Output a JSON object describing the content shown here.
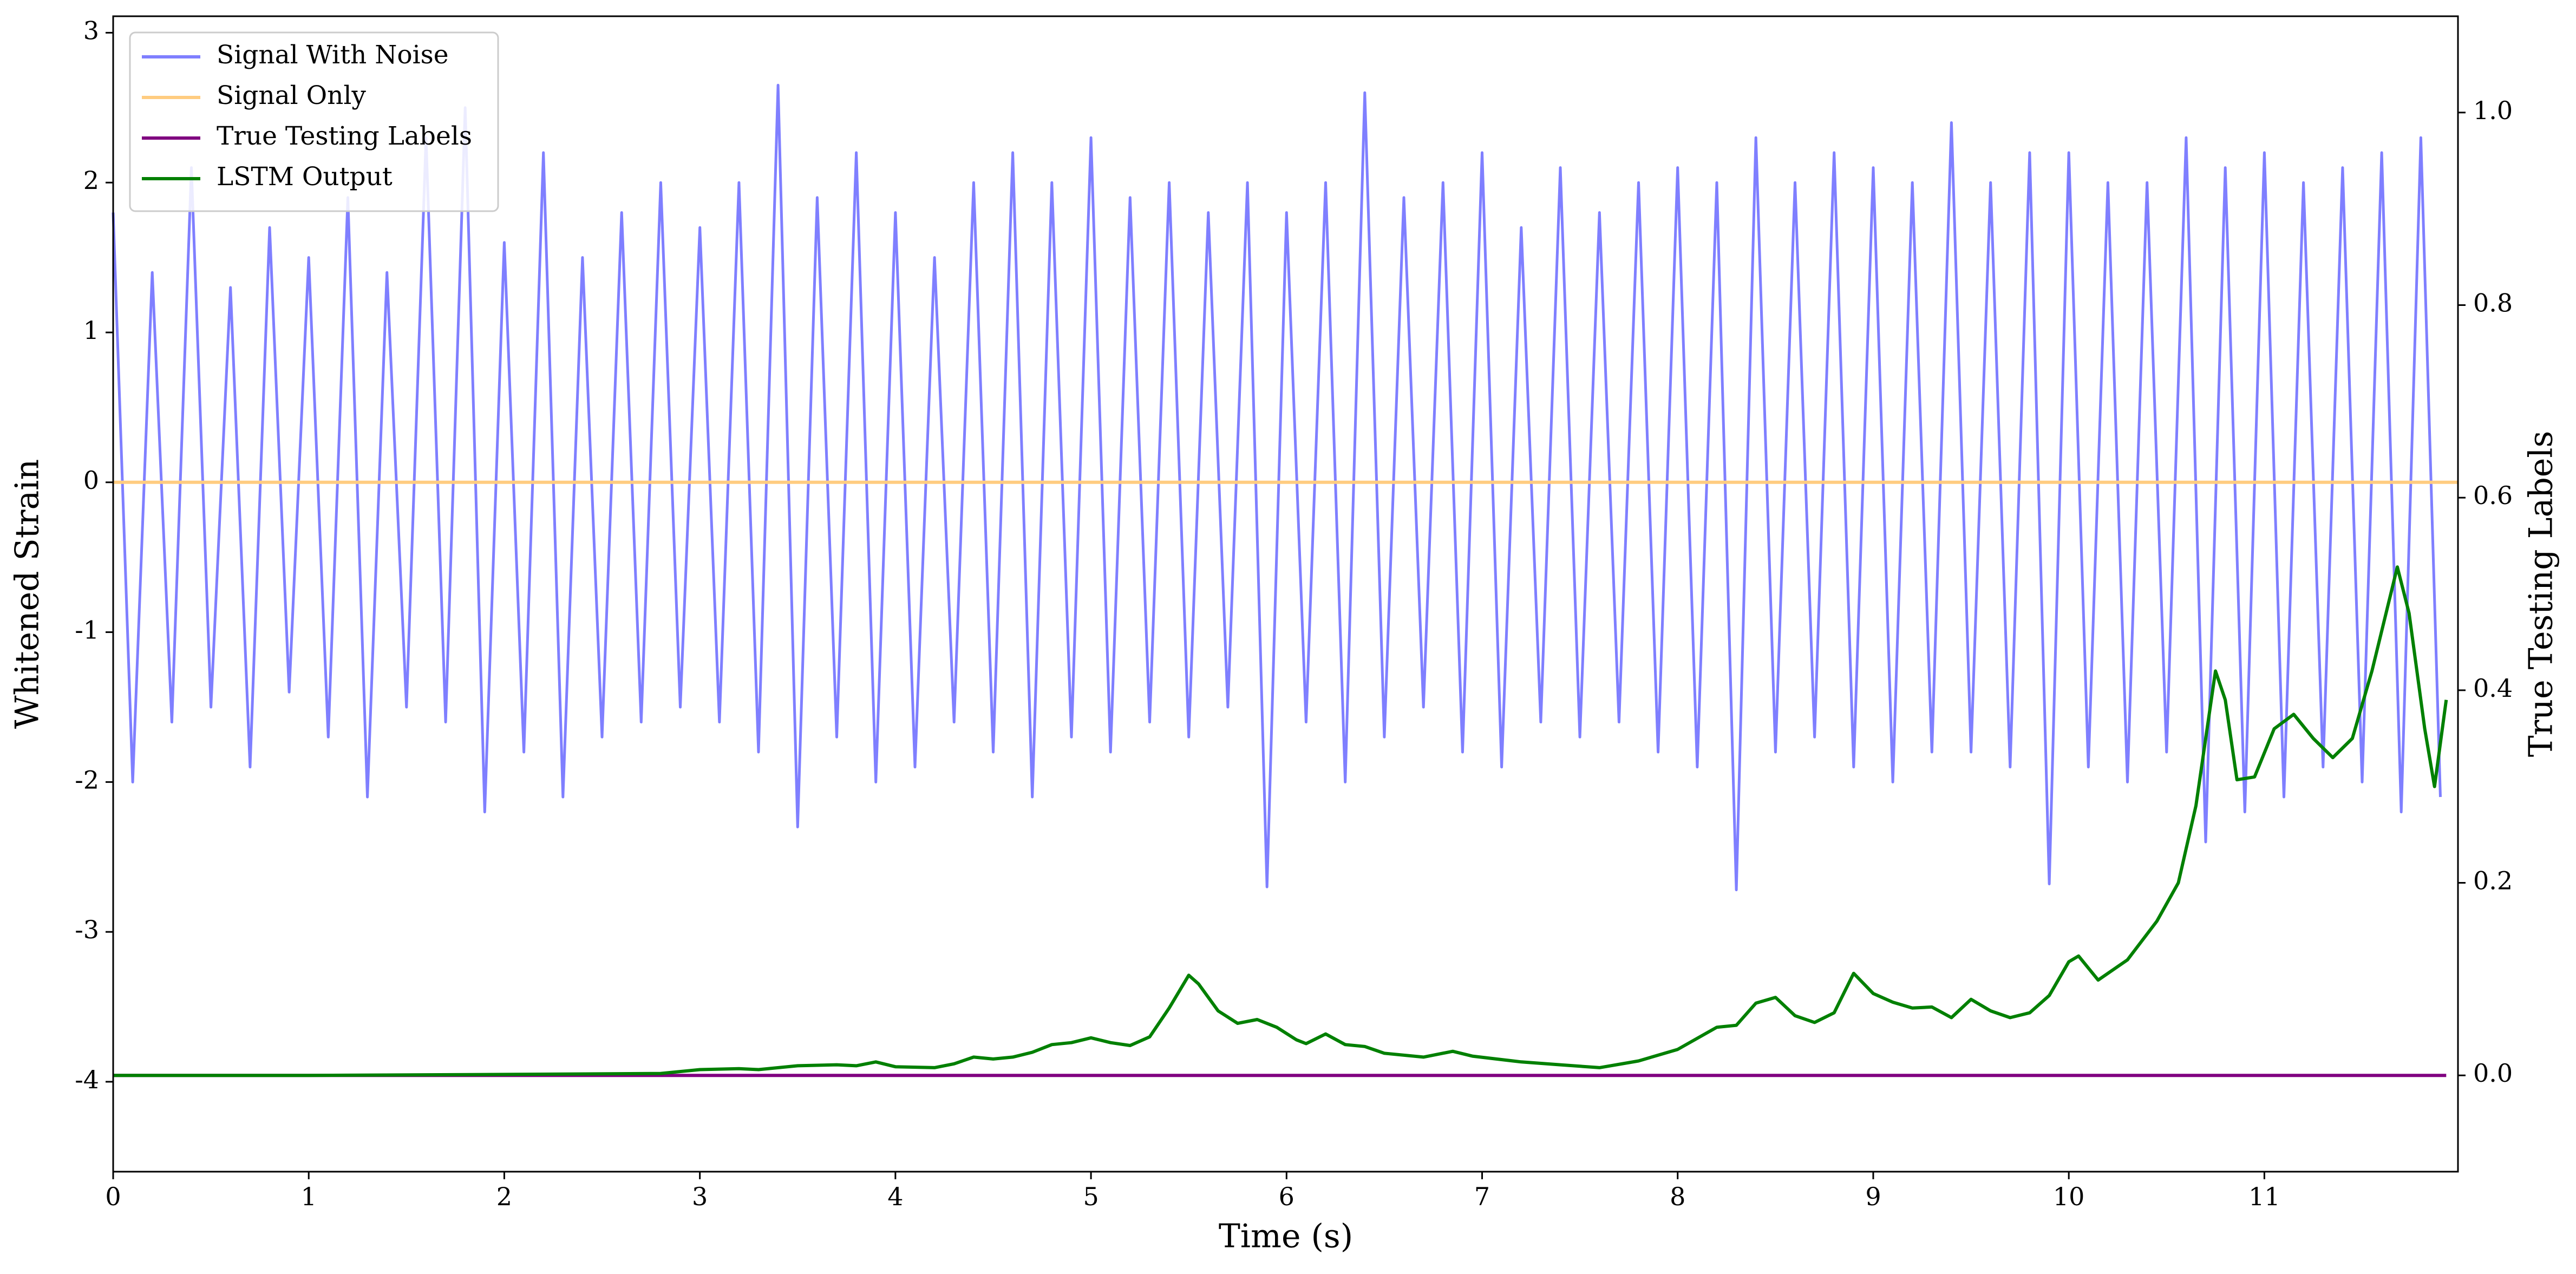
{
  "chart_data": {
    "type": "line",
    "xlabel": "Time (s)",
    "ylabel": "Whitened Strain",
    "y2label": "True Testing Labels",
    "xlim": [
      0,
      11.99
    ],
    "ylim": [
      -4.6,
      3.11
    ],
    "y2lim": [
      -0.1,
      1.1
    ],
    "xticks": [
      0,
      1,
      2,
      3,
      4,
      5,
      6,
      7,
      8,
      9,
      10,
      11
    ],
    "yticks": [
      -4,
      -3,
      -2,
      -1,
      0,
      1,
      2,
      3
    ],
    "y2ticks": [
      {
        "value": 0,
        "label": "0.0"
      },
      0.2,
      0.4,
      0.6,
      0.8,
      {
        "value": 1,
        "label": "1.0"
      }
    ],
    "legend": "upper left",
    "series": [
      {
        "name": "Signal With Noise",
        "color": "#7f7fff",
        "x": [
          0,
          0.1,
          0.2,
          0.3,
          0.4,
          0.5,
          0.6,
          0.7,
          0.8,
          0.9,
          1,
          1.1,
          1.2,
          1.3,
          1.4,
          1.5,
          1.6,
          1.7,
          1.8,
          1.9,
          2,
          2.1,
          2.2,
          2.3,
          2.4,
          2.5,
          2.6,
          2.7,
          2.8,
          2.9,
          3,
          3.1,
          3.2,
          3.3,
          3.4,
          3.5,
          3.6,
          3.7,
          3.8,
          3.9,
          4,
          4.1,
          4.2,
          4.3,
          4.4,
          4.5,
          4.6,
          4.7,
          4.8,
          4.9,
          5,
          5.1,
          5.2,
          5.3,
          5.4,
          5.5,
          5.6,
          5.7,
          5.8,
          5.9,
          6,
          6.1,
          6.2,
          6.3,
          6.4,
          6.5,
          6.6,
          6.7,
          6.8,
          6.9,
          7,
          7.1,
          7.2,
          7.3,
          7.4,
          7.5,
          7.6,
          7.7,
          7.8,
          7.9,
          8,
          8.1,
          8.2,
          8.3,
          8.4,
          8.5,
          8.6,
          8.7,
          8.8,
          8.9,
          9,
          9.1,
          9.2,
          9.3,
          9.4,
          9.5,
          9.6,
          9.7,
          9.8,
          9.9,
          10,
          10.1,
          10.2,
          10.3,
          10.4,
          10.5,
          10.6,
          10.7,
          10.8,
          10.9,
          11,
          11.1,
          11.2,
          11.3,
          11.4,
          11.5,
          11.6,
          11.7,
          11.8,
          11.9
        ],
        "values": [
          1.8,
          -2.0,
          1.4,
          -1.6,
          2.1,
          -1.5,
          1.3,
          -1.9,
          1.7,
          -1.4,
          1.5,
          -1.7,
          1.9,
          -2.1,
          1.4,
          -1.5,
          2.3,
          -1.6,
          2.5,
          -2.2,
          1.6,
          -1.8,
          2.2,
          -2.1,
          1.5,
          -1.7,
          1.8,
          -1.6,
          2.0,
          -1.5,
          1.7,
          -1.6,
          2.0,
          -1.8,
          2.65,
          -2.3,
          1.9,
          -1.7,
          2.2,
          -2.0,
          1.8,
          -1.9,
          1.5,
          -1.6,
          2.0,
          -1.8,
          2.2,
          -2.1,
          2.0,
          -1.7,
          2.3,
          -1.8,
          1.9,
          -1.6,
          2.0,
          -1.7,
          1.8,
          -1.5,
          2.0,
          -2.7,
          1.8,
          -1.6,
          2.0,
          -2.0,
          2.6,
          -1.7,
          1.9,
          -1.5,
          2.0,
          -1.8,
          2.2,
          -1.9,
          1.7,
          -1.6,
          2.1,
          -1.7,
          1.8,
          -1.6,
          2.0,
          -1.8,
          2.1,
          -1.9,
          2.0,
          -2.72,
          2.3,
          -1.8,
          2.0,
          -1.7,
          2.2,
          -1.9,
          2.1,
          -2.0,
          2.0,
          -1.8,
          2.4,
          -1.8,
          2.0,
          -1.9,
          2.2,
          -2.68,
          2.2,
          -1.9,
          2.0,
          -2.0,
          2.0,
          -1.8,
          2.3,
          -2.4,
          2.1,
          -2.2,
          2.2,
          -2.1,
          2.0,
          -1.9,
          2.1,
          -2.0,
          2.2,
          -2.2,
          2.3,
          -2.1
        ]
      },
      {
        "name": "Signal Only",
        "color": "#ffcc80",
        "x": [
          0,
          11.99
        ],
        "values": [
          0,
          0
        ]
      },
      {
        "name": "True Testing Labels",
        "color": "#800080",
        "axis": "y2",
        "x": [
          0,
          11.93
        ],
        "values": [
          0,
          0
        ]
      },
      {
        "name": "LSTM Output",
        "color": "#008000",
        "axis": "y2",
        "x": [
          0,
          1,
          2,
          2.8,
          3,
          3.2,
          3.3,
          3.5,
          3.7,
          3.8,
          3.9,
          4,
          4.2,
          4.3,
          4.4,
          4.5,
          4.6,
          4.7,
          4.8,
          4.9,
          5,
          5.1,
          5.2,
          5.3,
          5.4,
          5.5,
          5.55,
          5.65,
          5.75,
          5.85,
          5.95,
          6.05,
          6.1,
          6.2,
          6.3,
          6.4,
          6.5,
          6.7,
          6.85,
          6.95,
          7.2,
          7.4,
          7.6,
          7.8,
          8,
          8.2,
          8.3,
          8.4,
          8.5,
          8.6,
          8.7,
          8.8,
          8.9,
          9,
          9.1,
          9.2,
          9.3,
          9.4,
          9.5,
          9.6,
          9.7,
          9.8,
          9.9,
          10,
          10.05,
          10.15,
          10.3,
          10.45,
          10.56,
          10.65,
          10.75,
          10.8,
          10.86,
          10.95,
          11.05,
          11.15,
          11.25,
          11.35,
          11.45,
          11.55,
          11.68,
          11.74,
          11.82,
          11.87,
          11.93
        ],
        "values": [
          0,
          0,
          0.001,
          0.002,
          0.006,
          0.007,
          0.006,
          0.01,
          0.011,
          0.01,
          0.014,
          0.009,
          0.008,
          0.012,
          0.019,
          0.017,
          0.019,
          0.024,
          0.032,
          0.034,
          0.039,
          0.034,
          0.031,
          0.04,
          0.07,
          0.104,
          0.095,
          0.067,
          0.054,
          0.058,
          0.05,
          0.037,
          0.033,
          0.043,
          0.032,
          0.03,
          0.023,
          0.019,
          0.025,
          0.02,
          0.014,
          0.011,
          0.008,
          0.015,
          0.027,
          0.05,
          0.052,
          0.075,
          0.081,
          0.062,
          0.055,
          0.065,
          0.106,
          0.085,
          0.076,
          0.07,
          0.071,
          0.06,
          0.079,
          0.067,
          0.06,
          0.065,
          0.083,
          0.118,
          0.124,
          0.099,
          0.12,
          0.16,
          0.2,
          0.28,
          0.42,
          0.39,
          0.307,
          0.31,
          0.36,
          0.375,
          0.35,
          0.33,
          0.35,
          0.42,
          0.528,
          0.48,
          0.36,
          0.3,
          0.39
        ]
      }
    ]
  }
}
